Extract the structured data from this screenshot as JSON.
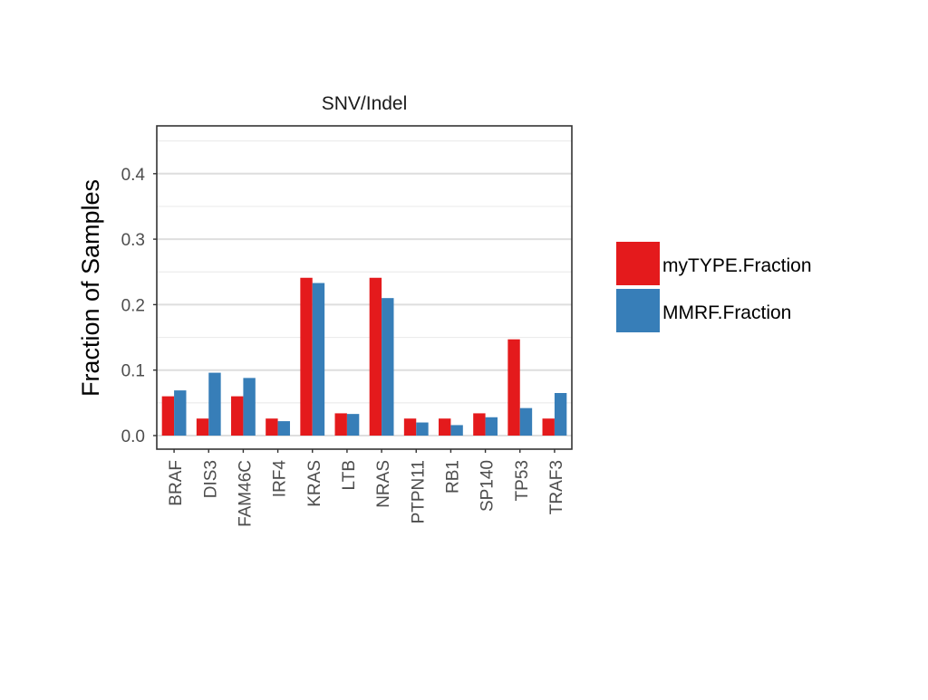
{
  "chart_data": {
    "type": "bar",
    "title": "SNV/Indel",
    "xlabel": "",
    "ylabel": "Fraction of Samples",
    "ylim": [
      -0.02,
      0.47
    ],
    "yticks": [
      "0.0",
      "0.1",
      "0.2",
      "0.3",
      "0.4"
    ],
    "grid": true,
    "legend_position": "right",
    "categories": [
      "BRAF",
      "DIS3",
      "FAM46C",
      "IRF4",
      "KRAS",
      "LTB",
      "NRAS",
      "PTPN11",
      "RB1",
      "SP140",
      "TP53",
      "TRAF3"
    ],
    "series": [
      {
        "name": "myTYPE.Fraction",
        "color": "#E41A1C",
        "values": [
          0.06,
          0.026,
          0.06,
          0.026,
          0.241,
          0.034,
          0.241,
          0.026,
          0.026,
          0.034,
          0.147,
          0.026
        ]
      },
      {
        "name": "MMRF.Fraction",
        "color": "#377EB8",
        "values": [
          0.069,
          0.096,
          0.088,
          0.022,
          0.233,
          0.033,
          0.21,
          0.02,
          0.016,
          0.028,
          0.042,
          0.065
        ]
      }
    ]
  }
}
